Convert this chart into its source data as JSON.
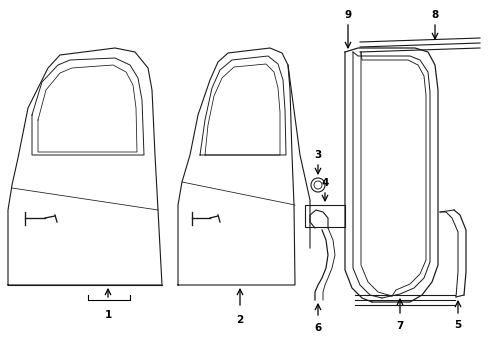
{
  "bg_color": "#ffffff",
  "line_color": "#1a1a1a",
  "fig_width": 4.89,
  "fig_height": 3.6,
  "dpi": 100,
  "xlim": [
    0,
    489
  ],
  "ylim": [
    0,
    360
  ]
}
